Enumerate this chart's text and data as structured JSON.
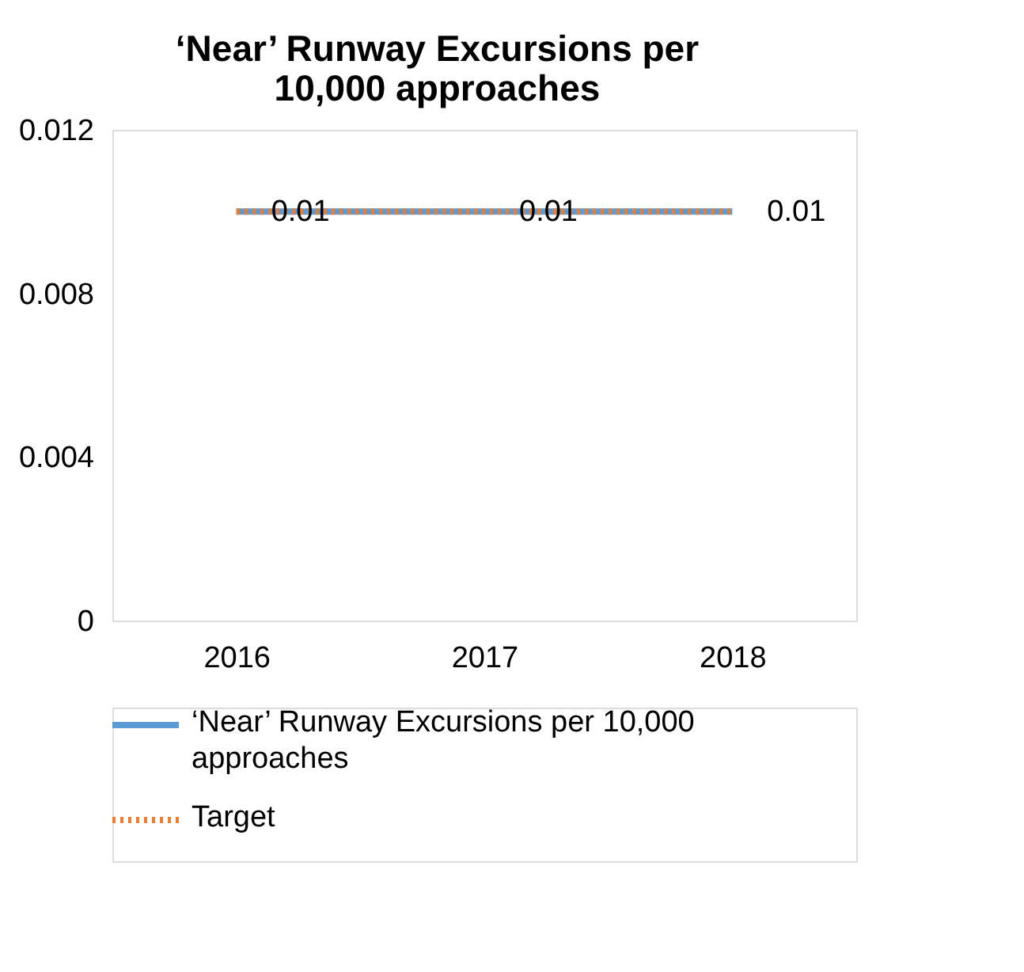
{
  "chart_data": {
    "type": "line",
    "title": "‘Near’ Runway Excursions per 10,000 approaches",
    "categories": [
      "2016",
      "2017",
      "2018"
    ],
    "series": [
      {
        "name": "‘Near’ Runway Excursions per 10,000 approaches",
        "color": "#5b9bd5",
        "values": [
          0.01,
          0.01,
          0.01
        ],
        "line_style": "solid",
        "value_labels": [
          "0.01",
          "0.01",
          "0.01"
        ]
      },
      {
        "name": "Target",
        "color": "#ed7d31",
        "values": [
          0.01,
          0.01,
          0.01
        ],
        "line_style": "dotted"
      }
    ],
    "ylim": [
      0,
      0.012
    ],
    "yticks": [
      0,
      0.004,
      0.008,
      0.012
    ],
    "grid": false,
    "legend": "bottom",
    "marker": "none"
  }
}
